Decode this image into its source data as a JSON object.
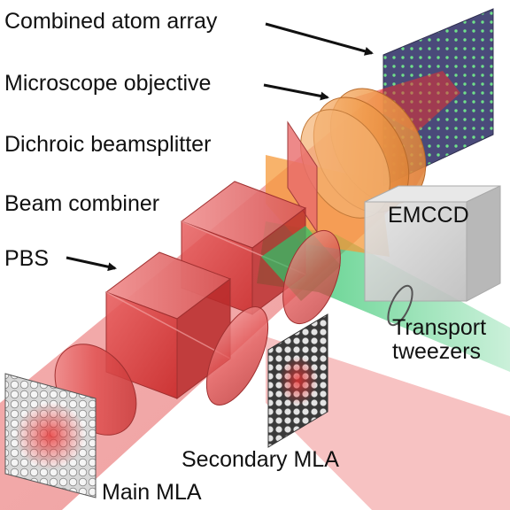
{
  "labels": {
    "combined_atom_array": "Combined atom array",
    "microscope_objective": "Microscope objective",
    "dichroic_beamsplitter": "Dichroic beamsplitter",
    "beam_combiner": "Beam combiner",
    "pbs": "PBS",
    "emccd": "EMCCD",
    "transport_line1": "Transport",
    "transport_line2": "tweezers",
    "secondary_mla": "Secondary MLA",
    "main_mla": "Main MLA"
  },
  "colors": {
    "red_beam": "#e84a4a",
    "green_beam": "#2ec46a",
    "orange_beam": "#f59a3a",
    "cube_red": "#d93a3a",
    "camera_gray": "#c8c8c8",
    "atom_array_bg": "#4a4a7a",
    "atom_dot": "#6fe08a"
  }
}
